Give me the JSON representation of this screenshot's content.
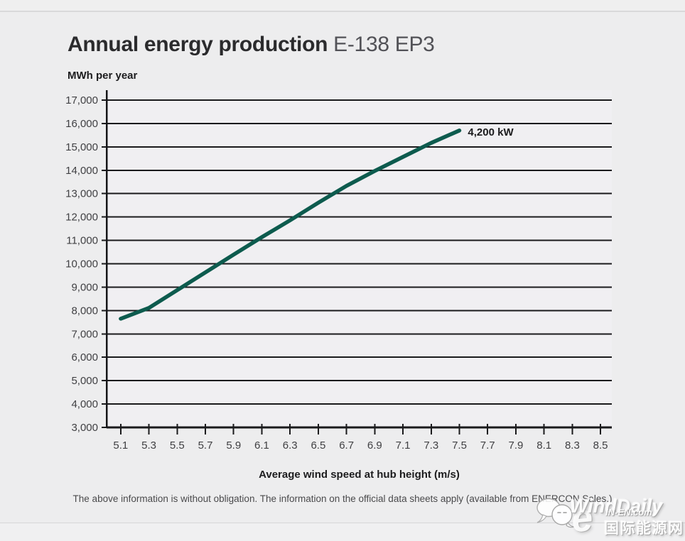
{
  "page": {
    "title_main": "Annual energy production",
    "title_model": "E-138 EP3"
  },
  "chart_data": {
    "type": "line",
    "title": "Annual energy production E-138 EP3",
    "ylabel": "MWh per year",
    "xlabel": "Average wind speed at hub height (m/s)",
    "xlim": [
      5.0,
      8.58
    ],
    "ylim": [
      3000,
      17000
    ],
    "grid": "horizontal",
    "legend_position": "none",
    "x_ticks": [
      5.1,
      5.3,
      5.5,
      5.7,
      5.9,
      6.1,
      6.3,
      6.5,
      6.7,
      6.9,
      7.1,
      7.3,
      7.5,
      7.7,
      7.9,
      8.1,
      8.3,
      8.5
    ],
    "y_ticks": [
      3000,
      4000,
      5000,
      6000,
      7000,
      8000,
      9000,
      10000,
      11000,
      12000,
      13000,
      14000,
      15000,
      16000,
      17000
    ],
    "series": [
      {
        "name": "4,200 kW",
        "color": "#0d5b4e",
        "x": [
          5.1,
          5.3,
          5.5,
          5.7,
          5.9,
          6.1,
          6.3,
          6.5,
          6.7,
          6.9,
          7.1,
          7.3,
          7.5
        ],
        "y": [
          7650,
          8110,
          8870,
          9630,
          10390,
          11140,
          11860,
          12610,
          13330,
          13970,
          14570,
          15170,
          15700
        ]
      }
    ],
    "annotation": {
      "text": "4,200 kW",
      "x": 7.56,
      "y": 15630
    },
    "colors": {
      "grid": "#1a1a1c",
      "axis": "#161618",
      "tick_label": "#404043",
      "plot_bg": "#f0eff2",
      "annotation_text": "#1a1a1c"
    }
  },
  "footer": {
    "disclaimer": "The above information is without obligation. The information on the official data sheets apply (available from ENERCON Sales.)"
  },
  "watermark": {
    "brand": "WindDaily",
    "logo_letter": "e",
    "site": "IN-EN.com",
    "site_cn": "国际能源网"
  }
}
